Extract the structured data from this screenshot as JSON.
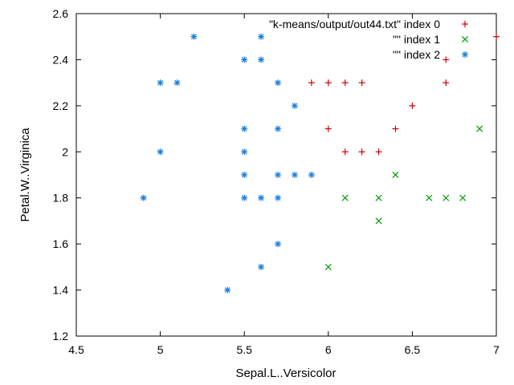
{
  "chart_data": {
    "type": "scatter",
    "xlabel": "Sepal.L..Versicolor",
    "ylabel": "Petal.W..Virginica",
    "xlim": [
      4.5,
      7
    ],
    "ylim": [
      1.2,
      2.6
    ],
    "xticks": [
      "4.5",
      "5",
      "5.5",
      "6",
      "6.5",
      "7"
    ],
    "yticks": [
      "1.2",
      "1.4",
      "1.6",
      "1.8",
      "2",
      "2.2",
      "2.4",
      "2.6"
    ],
    "grid": false,
    "legend_position": "top-right",
    "series": [
      {
        "name": "\"k-means/output/out44.txt\" index 0",
        "marker": "plus",
        "color": "#cc0000",
        "points": [
          [
            5.9,
            2.3
          ],
          [
            6.0,
            2.3
          ],
          [
            6.1,
            2.3
          ],
          [
            6.2,
            2.3
          ],
          [
            6.7,
            2.3
          ],
          [
            6.0,
            2.1
          ],
          [
            6.4,
            2.1
          ],
          [
            6.5,
            2.2
          ],
          [
            6.7,
            2.4
          ],
          [
            7.0,
            2.5
          ],
          [
            6.1,
            2.0
          ],
          [
            6.2,
            2.0
          ],
          [
            6.3,
            2.0
          ]
        ]
      },
      {
        "name": "\"\" index 1",
        "marker": "cross",
        "color": "#009900",
        "points": [
          [
            6.9,
            2.1
          ],
          [
            6.4,
            1.9
          ],
          [
            6.1,
            1.8
          ],
          [
            6.3,
            1.8
          ],
          [
            6.6,
            1.8
          ],
          [
            6.7,
            1.8
          ],
          [
            6.8,
            1.8
          ],
          [
            6.3,
            1.7
          ],
          [
            6.0,
            1.5
          ]
        ]
      },
      {
        "name": "\"\" index 2",
        "marker": "star",
        "color": "#1a7ed6",
        "points": [
          [
            5.2,
            2.5
          ],
          [
            5.6,
            2.5
          ],
          [
            5.5,
            2.4
          ],
          [
            5.6,
            2.4
          ],
          [
            5.0,
            2.3
          ],
          [
            5.1,
            2.3
          ],
          [
            5.7,
            2.3
          ],
          [
            5.8,
            2.2
          ],
          [
            5.5,
            2.1
          ],
          [
            5.7,
            2.1
          ],
          [
            5.0,
            2.0
          ],
          [
            5.5,
            2.0
          ],
          [
            5.5,
            1.9
          ],
          [
            5.7,
            1.9
          ],
          [
            5.8,
            1.9
          ],
          [
            5.9,
            1.9
          ],
          [
            4.9,
            1.8
          ],
          [
            5.5,
            1.8
          ],
          [
            5.6,
            1.8
          ],
          [
            5.7,
            1.8
          ],
          [
            5.7,
            1.6
          ],
          [
            5.6,
            1.5
          ],
          [
            5.4,
            1.4
          ]
        ]
      }
    ]
  }
}
